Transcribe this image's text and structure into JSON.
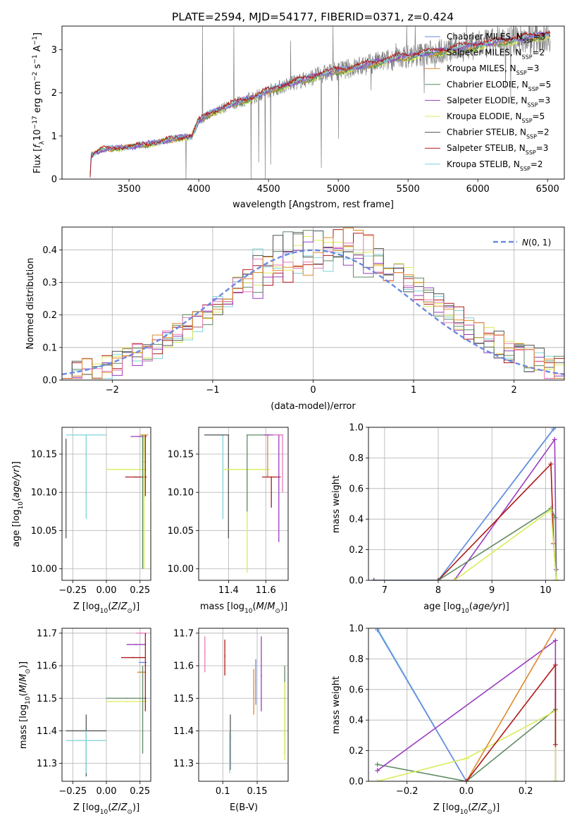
{
  "figure_title": "PLATE=2594, MJD=54177, FIBERID=0371, z=0.424",
  "colors": {
    "Chabrier MILES": "#6a89e0",
    "Salpeter MILES": "#4a8a4a",
    "Kroupa MILES": "#e08a2c",
    "Chabrier ELODIE": "#5f8a63",
    "Salpeter ELODIE": "#9a3dbf",
    "Kroupa ELODIE": "#d9ec5a",
    "Chabrier STELIB": "#555555",
    "Salpeter STELIB": "#b01818",
    "Kroupa STELIB": "#7fd3d8",
    "extra": "#e67ab5",
    "data": "#808080"
  },
  "chart_data": [
    {
      "id": "spectrum",
      "type": "line",
      "xlabel": "wavelength [Angstrom, rest frame]",
      "ylabel": "Flux [f_λ 10^-17 erg cm^-2 s^-1 A^-1]",
      "xlim": [
        3020,
        6620
      ],
      "ylim": [
        0,
        3.55
      ],
      "xticks": [
        3500,
        4000,
        4500,
        5000,
        5500,
        6000,
        6500
      ],
      "yticks": [
        0,
        1,
        2,
        3
      ],
      "grid": false,
      "legend_position": "top-right",
      "legend": [
        {
          "label": "Chabrier MILES, N",
          "sub": "SSP",
          "post": "=3"
        },
        {
          "label": "Salpeter MILES, N",
          "sub": "SSP",
          "post": "=2"
        },
        {
          "label": "Kroupa MILES, N",
          "sub": "SSP",
          "post": "=3"
        },
        {
          "label": "Chabrier ELODIE, N",
          "sub": "SSP",
          "post": "=5"
        },
        {
          "label": "Salpeter ELODIE, N",
          "sub": "SSP",
          "post": "=3"
        },
        {
          "label": "Kroupa ELODIE, N",
          "sub": "SSP",
          "post": "=5"
        },
        {
          "label": "Chabrier STELIB, N",
          "sub": "SSP",
          "post": "=2"
        },
        {
          "label": "Salpeter STELIB, N",
          "sub": "SSP",
          "post": "=3"
        },
        {
          "label": "Kroupa STELIB, N",
          "sub": "SSP",
          "post": "=2"
        }
      ],
      "model_continuum": [
        [
          3220,
          0.0
        ],
        [
          3230,
          0.55
        ],
        [
          3300,
          0.68
        ],
        [
          3400,
          0.72
        ],
        [
          3500,
          0.74
        ],
        [
          3700,
          0.85
        ],
        [
          3850,
          0.95
        ],
        [
          3950,
          1.0
        ],
        [
          4000,
          1.35
        ],
        [
          4100,
          1.55
        ],
        [
          4250,
          1.75
        ],
        [
          4400,
          1.9
        ],
        [
          4500,
          2.05
        ],
        [
          4700,
          2.25
        ],
        [
          4900,
          2.45
        ],
        [
          5100,
          2.58
        ],
        [
          5300,
          2.72
        ],
        [
          5500,
          2.85
        ],
        [
          5700,
          2.95
        ],
        [
          5900,
          3.05
        ],
        [
          6100,
          3.15
        ],
        [
          6300,
          3.25
        ],
        [
          6500,
          3.35
        ]
      ]
    },
    {
      "id": "residuals",
      "type": "histogram",
      "xlabel": "(data-model)/error",
      "ylabel": "Normed distribution",
      "xlim": [
        -2.5,
        2.5
      ],
      "ylim": [
        0,
        0.47
      ],
      "xticks": [
        -2,
        -1,
        0,
        1,
        2
      ],
      "yticks": [
        0.0,
        0.1,
        0.2,
        0.3,
        0.4
      ],
      "grid": true,
      "legend_position": "top-right",
      "reference": {
        "label": "N(0,1)",
        "mean": 0,
        "sigma": 1
      }
    },
    {
      "id": "age_vs_Z",
      "type": "errorbar",
      "xlabel": "Z [log10(Z/Z⊙)]",
      "ylabel": "age [log10(age/yr)]",
      "xlim": [
        -0.33,
        0.33
      ],
      "ylim": [
        9.985,
        10.185
      ],
      "xticks": [
        -0.25,
        0.0,
        0.25
      ],
      "yticks": [
        10.0,
        10.05,
        10.1,
        10.15
      ],
      "grid": true,
      "items": [
        {
          "c": "Kroupa STELIB",
          "x": -0.15,
          "xerr": [
            0.15,
            0.15
          ],
          "y": 10.175,
          "yerr": [
            0.11,
            0.0
          ]
        },
        {
          "c": "Chabrier STELIB",
          "x": -0.3,
          "xerr": [
            0,
            0
          ],
          "y": 10.1,
          "yerr": [
            0.06,
            0.07
          ]
        },
        {
          "c": "Kroupa ELODIE",
          "x": 0.15,
          "xerr": [
            0.15,
            0.15
          ],
          "y": 10.13,
          "yerr": [
            0.0,
            0.0
          ]
        },
        {
          "c": "Salpeter STELIB",
          "x": 0.22,
          "xerr": [
            0.08,
            0.08
          ],
          "y": 10.12,
          "yerr": [
            0,
            0
          ]
        },
        {
          "c": "Salpeter ELODIE",
          "x": 0.24,
          "xerr": [
            0.06,
            0.06
          ],
          "y": 10.173,
          "yerr": [
            0,
            0
          ]
        },
        {
          "c": "Kroupa MILES",
          "x": 0.28,
          "xerr": [
            0.03,
            0.03
          ],
          "y": 10.175,
          "yerr": [
            0.03,
            0
          ]
        },
        {
          "c": "Salpeter MILES",
          "x": 0.27,
          "xerr": [
            0,
            0
          ],
          "y": 10.14,
          "yerr": [
            0.14,
            0.035
          ]
        },
        {
          "c": "Kroupa ELODIE",
          "x": 0.28,
          "xerr": [
            0,
            0
          ],
          "y": 10.1,
          "yerr": [
            0.1,
            0.075
          ]
        },
        {
          "c": "Salpeter STELIB",
          "x": 0.29,
          "xerr": [
            0,
            0
          ],
          "y": 10.14,
          "yerr": [
            0.045,
            0.035
          ]
        }
      ]
    },
    {
      "id": "age_vs_mass",
      "type": "errorbar",
      "xlabel": "mass [log10(M/M⊙)]",
      "ylabel": "",
      "xlim": [
        11.24,
        11.72
      ],
      "ylim": [
        9.985,
        10.185
      ],
      "xticks": [
        11.4,
        11.6
      ],
      "yticks": [
        10.0,
        10.05,
        10.1,
        10.15
      ],
      "grid": true,
      "items": [
        {
          "c": "Kroupa STELIB",
          "x": 11.37,
          "xerr": [
            0.1,
            0.0
          ],
          "y": 10.175,
          "yerr": [
            0.11,
            0.0
          ]
        },
        {
          "c": "Chabrier STELIB",
          "x": 11.4,
          "xerr": [
            0.13,
            0.0
          ],
          "y": 10.175,
          "yerr": [
            0.135,
            0.0
          ]
        },
        {
          "c": "Kroupa ELODIE",
          "x": 11.5,
          "xerr": [
            0.13,
            0.12
          ],
          "y": 10.13,
          "yerr": [
            0.135,
            0.0
          ]
        },
        {
          "c": "Chabrier ELODIE",
          "x": 11.5,
          "xerr": [
            0.0,
            0.1
          ],
          "y": 10.175,
          "yerr": [
            0.1,
            0.0
          ]
        },
        {
          "c": "Kroupa MILES",
          "x": 11.61,
          "xerr": [
            0.02,
            0.02
          ],
          "y": 10.175,
          "yerr": [
            0.055,
            0.0
          ]
        },
        {
          "c": "Salpeter STELIB",
          "x": 11.63,
          "xerr": [
            0.05,
            0.05
          ],
          "y": 10.12,
          "yerr": [
            0.04,
            0.0
          ]
        },
        {
          "c": "Salpeter ELODIE",
          "x": 11.67,
          "xerr": [
            0.08,
            0.02
          ],
          "y": 10.175,
          "yerr": [
            0.14,
            0.0
          ]
        },
        {
          "c": "extra",
          "x": 11.69,
          "xerr": [
            0.05,
            0.0
          ],
          "y": 10.175,
          "yerr": [
            0.075,
            0.0
          ]
        }
      ]
    },
    {
      "id": "mass_weight_vs_age",
      "type": "line",
      "xlabel": "age [log10(age/yr)]",
      "ylabel": "mass weight",
      "xlim": [
        6.7,
        10.35
      ],
      "ylim": [
        0,
        1.0
      ],
      "xticks": [
        7,
        8,
        9,
        10
      ],
      "yticks": [
        0.0,
        0.2,
        0.4,
        0.6,
        0.8,
        1.0
      ],
      "grid": true,
      "series": [
        {
          "c": "Kroupa STELIB",
          "x": [
            6.8,
            8.0,
            10.18
          ],
          "y": [
            0,
            0,
            1.0
          ]
        },
        {
          "c": "Chabrier MILES",
          "x": [
            6.8,
            8.0,
            10.15
          ],
          "y": [
            0,
            0,
            0.99
          ]
        },
        {
          "c": "Salpeter ELODIE",
          "x": [
            8.3,
            10.17,
            10.2
          ],
          "y": [
            0,
            0.92,
            0.07
          ]
        },
        {
          "c": "Salpeter STELIB",
          "x": [
            8.0,
            10.1,
            10.15,
            10.2
          ],
          "y": [
            0,
            0.76,
            0.24,
            0.0
          ]
        },
        {
          "c": "Chabrier ELODIE",
          "x": [
            8.0,
            10.1,
            10.18,
            10.2
          ],
          "y": [
            0,
            0.47,
            0.41,
            0.0
          ]
        },
        {
          "c": "Kroupa ELODIE",
          "x": [
            8.3,
            10.1,
            10.2
          ],
          "y": [
            0,
            0.46,
            0.0
          ]
        },
        {
          "c": "Chabrier STELIB",
          "x": [
            6.8,
            8.0
          ],
          "y": [
            0,
            0
          ]
        }
      ]
    },
    {
      "id": "mass_vs_Z",
      "type": "errorbar",
      "xlabel": "Z [log10(Z/Z⊙)]",
      "ylabel": "mass [log10(M/M⊙)]",
      "xlim": [
        -0.33,
        0.33
      ],
      "ylim": [
        11.245,
        11.715
      ],
      "xticks": [
        -0.25,
        0.0,
        0.25
      ],
      "yticks": [
        11.3,
        11.4,
        11.5,
        11.6,
        11.7
      ],
      "grid": true,
      "items": [
        {
          "c": "Chabrier STELIB",
          "x": -0.15,
          "xerr": [
            0.15,
            0.15
          ],
          "y": 11.4,
          "yerr": [
            0.14,
            0.05
          ]
        },
        {
          "c": "Kroupa STELIB",
          "x": -0.15,
          "xerr": [
            0.15,
            0.15
          ],
          "y": 11.37,
          "yerr": [
            0.1,
            0.03
          ]
        },
        {
          "c": "Chabrier ELODIE",
          "x": 0.15,
          "xerr": [
            0.15,
            0.15
          ],
          "y": 11.5,
          "yerr": [
            0,
            0
          ]
        },
        {
          "c": "Kroupa ELODIE",
          "x": 0.15,
          "xerr": [
            0.15,
            0.15
          ],
          "y": 11.49,
          "yerr": [
            0,
            0
          ]
        },
        {
          "c": "Salpeter STELIB",
          "x": 0.2,
          "xerr": [
            0.09,
            0.09
          ],
          "y": 11.625,
          "yerr": [
            0,
            0
          ]
        },
        {
          "c": "Salpeter ELODIE",
          "x": 0.22,
          "xerr": [
            0.07,
            0.07
          ],
          "y": 11.665,
          "yerr": [
            0,
            0
          ]
        },
        {
          "c": "extra",
          "x": 0.26,
          "xerr": [
            0.04,
            0.04
          ],
          "y": 11.7,
          "yerr": [
            0,
            0
          ]
        },
        {
          "c": "Chabrier MILES",
          "x": 0.27,
          "xerr": [
            0.03,
            0.03
          ],
          "y": 11.61,
          "yerr": [
            0,
            0
          ]
        },
        {
          "c": "Kroupa MILES",
          "x": 0.26,
          "xerr": [
            0.03,
            0.03
          ],
          "y": 11.58,
          "yerr": [
            0,
            0
          ]
        },
        {
          "c": "Chabrier ELODIE",
          "x": 0.27,
          "xerr": [
            0,
            0
          ],
          "y": 11.5,
          "yerr": [
            0.17,
            0.1
          ]
        },
        {
          "c": "Salpeter STELIB",
          "x": 0.29,
          "xerr": [
            0,
            0
          ],
          "y": 11.6,
          "yerr": [
            0.14,
            0.1
          ]
        }
      ]
    },
    {
      "id": "mass_vs_ebv",
      "type": "errorbar",
      "xlabel": "E(B-V)",
      "ylabel": "",
      "xlim": [
        0.065,
        0.195
      ],
      "ylim": [
        11.245,
        11.715
      ],
      "xticks": [
        0.1,
        0.15
      ],
      "yticks": [
        11.3,
        11.4,
        11.5,
        11.6,
        11.7
      ],
      "grid": true,
      "items": [
        {
          "c": "extra",
          "x": 0.074,
          "xerr": [
            0,
            0
          ],
          "y": 11.64,
          "yerr": [
            0.06,
            0.05
          ]
        },
        {
          "c": "Salpeter STELIB",
          "x": 0.103,
          "xerr": [
            0,
            0
          ],
          "y": 11.63,
          "yerr": [
            0.06,
            0.05
          ]
        },
        {
          "c": "Chabrier STELIB",
          "x": 0.111,
          "xerr": [
            0,
            0
          ],
          "y": 11.38,
          "yerr": [
            0.1,
            0.07
          ]
        },
        {
          "c": "Kroupa STELIB",
          "x": 0.11,
          "xerr": [
            0,
            0
          ],
          "y": 11.35,
          "yerr": [
            0.08,
            0.05
          ]
        },
        {
          "c": "Kroupa MILES",
          "x": 0.145,
          "xerr": [
            0,
            0
          ],
          "y": 11.52,
          "yerr": [
            0.07,
            0.07
          ]
        },
        {
          "c": "Chabrier MILES",
          "x": 0.148,
          "xerr": [
            0,
            0
          ],
          "y": 11.55,
          "yerr": [
            0.07,
            0.07
          ]
        },
        {
          "c": "Salpeter ELODIE",
          "x": 0.156,
          "xerr": [
            0,
            0
          ],
          "y": 11.57,
          "yerr": [
            0.11,
            0.12
          ]
        },
        {
          "c": "Chabrier ELODIE",
          "x": 0.19,
          "xerr": [
            0,
            0
          ],
          "y": 11.5,
          "yerr": [
            0.17,
            0.1
          ]
        },
        {
          "c": "Kroupa ELODIE",
          "x": 0.19,
          "xerr": [
            0,
            0
          ],
          "y": 11.45,
          "yerr": [
            0.14,
            0.1
          ]
        }
      ]
    },
    {
      "id": "mass_weight_vs_Z",
      "type": "line",
      "xlabel": "Z [log10(Z/Z⊙)]",
      "ylabel": "mass weight",
      "xlim": [
        -0.33,
        0.33
      ],
      "ylim": [
        0,
        1.0
      ],
      "xticks": [
        -0.2,
        0.0,
        0.2
      ],
      "yticks": [
        0.0,
        0.2,
        0.4,
        0.6,
        0.8,
        1.0
      ],
      "grid": true,
      "series": [
        {
          "c": "Kroupa STELIB",
          "x": [
            -0.3,
            0.0
          ],
          "y": [
            1.0,
            0.0
          ]
        },
        {
          "c": "Chabrier MILES",
          "x": [
            -0.3,
            0.0
          ],
          "y": [
            0.99,
            0.0
          ]
        },
        {
          "c": "Chabrier ELODIE",
          "x": [
            -0.3,
            0.0,
            0.3,
            0.3
          ],
          "y": [
            0.11,
            0.0,
            0.47,
            0.0
          ]
        },
        {
          "c": "Salpeter ELODIE",
          "x": [
            -0.3,
            0.3,
            0.3
          ],
          "y": [
            0.07,
            0.92,
            0.0
          ]
        },
        {
          "c": "Kroupa ELODIE",
          "x": [
            -0.3,
            0.0,
            0.3,
            0.3
          ],
          "y": [
            0.0,
            0.15,
            0.46,
            0.0
          ]
        },
        {
          "c": "Kroupa MILES",
          "x": [
            0.0,
            0.3
          ],
          "y": [
            0.0,
            1.0
          ]
        },
        {
          "c": "Salpeter STELIB",
          "x": [
            0.0,
            0.3,
            0.3
          ],
          "y": [
            0.0,
            0.76,
            0.24
          ]
        }
      ]
    }
  ]
}
